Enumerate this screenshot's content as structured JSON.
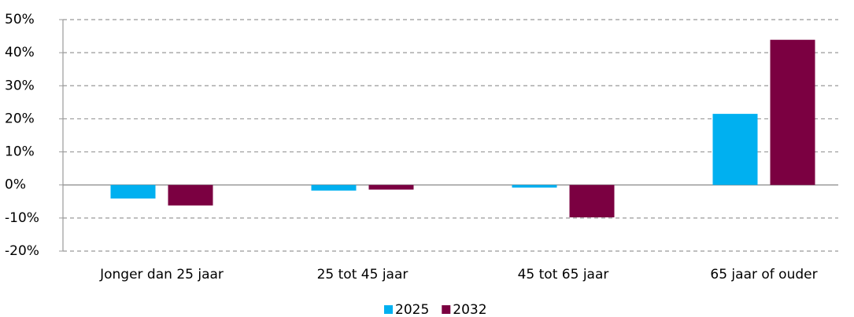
{
  "chart_data": {
    "type": "bar",
    "categories": [
      "Jonger dan 25 jaar",
      "25 tot 45 jaar",
      "45 tot 65 jaar",
      "65 jaar of ouder"
    ],
    "series": [
      {
        "name": "2025",
        "color": "#00b0f0",
        "values": [
          -4.1,
          -1.7,
          -0.8,
          21.5
        ]
      },
      {
        "name": "2032",
        "color": "#7b0041",
        "values": [
          -6.2,
          -1.4,
          -9.8,
          43.9
        ]
      }
    ],
    "ylim": [
      -20,
      50
    ],
    "yticks": [
      {
        "value": -20,
        "label": "-20%"
      },
      {
        "value": -10,
        "label": "-10%"
      },
      {
        "value": 0,
        "label": "0%"
      },
      {
        "value": 10,
        "label": "10%"
      },
      {
        "value": 20,
        "label": "20%"
      },
      {
        "value": 30,
        "label": "30%"
      },
      {
        "value": 40,
        "label": "40%"
      },
      {
        "value": 50,
        "label": "50%"
      }
    ],
    "grid": true,
    "legend": "bottom"
  }
}
